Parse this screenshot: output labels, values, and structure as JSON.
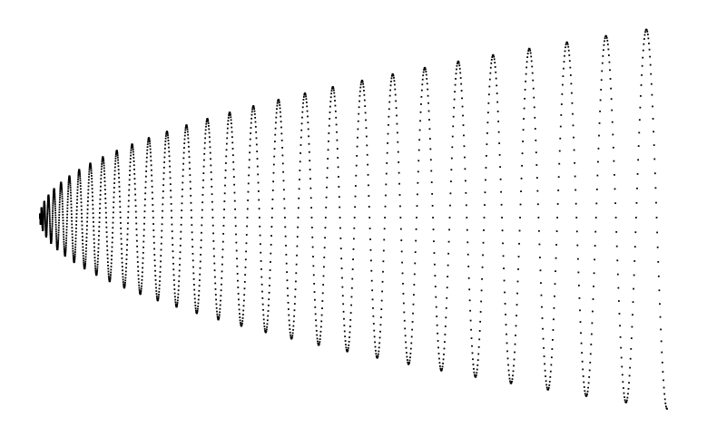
{
  "chart_data": {
    "type": "scatter",
    "title": "",
    "xlabel": "",
    "ylabel": "",
    "grid": false,
    "legend": "none",
    "axes_visible": false,
    "marker": "dot",
    "color": "#000000",
    "description_pattern": "chirp",
    "x_range": [
      0,
      1
    ],
    "y_range": [
      -1,
      1
    ],
    "cycles": 30,
    "envelope": {
      "x_start": 0.0,
      "x_end": 1.0,
      "amplitude_start": 0.0,
      "amplitude_end": 1.0
    },
    "series": [
      {
        "values_note": "",
        "points_per_cycle": 80
      }
    ]
  }
}
